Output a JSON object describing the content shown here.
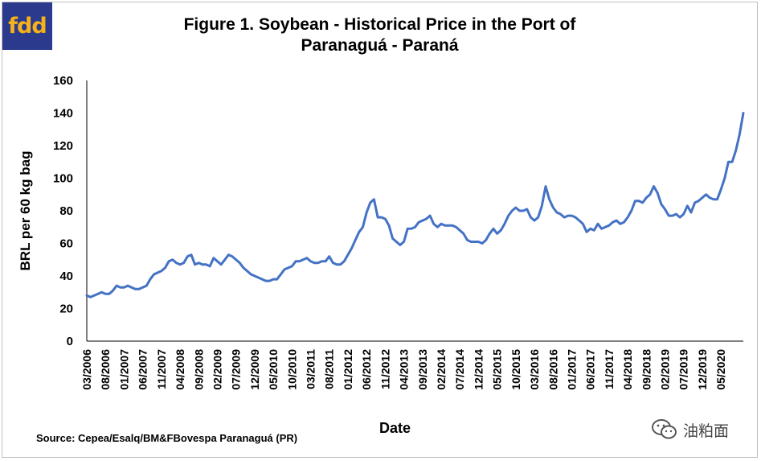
{
  "logo": {
    "text": "fdd",
    "bg_color": "#2b3a8c",
    "text_color": "#f5b21a"
  },
  "watermark": {
    "icon": "wechat-icon",
    "text": "油粕面"
  },
  "chart_data": {
    "type": "line",
    "title_line1": "Figure 1. Soybean - Historical Price in the Port of",
    "title_line2": "Paranaguá - Paraná",
    "xlabel": "Date",
    "ylabel": "BRL per 60 kg bag",
    "source": "Source: Cepea/Esalq/BM&FBovespa  Paranaguá (PR)",
    "ylim": [
      0,
      160
    ],
    "yticks": [
      0,
      20,
      40,
      60,
      80,
      100,
      120,
      140,
      160
    ],
    "xlim": [
      0,
      176
    ],
    "xtick_labels": [
      "03/2006",
      "08/2006",
      "01/2007",
      "06/2007",
      "11/2007",
      "04/2008",
      "09/2008",
      "02/2009",
      "07/2009",
      "12/2009",
      "05/2010",
      "10/2010",
      "03/2011",
      "08/2011",
      "01/2012",
      "06/2012",
      "11/2012",
      "04/2013",
      "09/2013",
      "02/2014",
      "07/2014",
      "12/2014",
      "05/2015",
      "10/2015",
      "03/2016",
      "08/2016",
      "01/2017",
      "06/2017",
      "11/2017",
      "04/2018",
      "09/2018",
      "02/2019",
      "07/2019",
      "12/2019",
      "05/2020"
    ],
    "xtick_months": [
      0,
      5,
      10,
      15,
      20,
      25,
      30,
      35,
      40,
      45,
      50,
      55,
      60,
      65,
      70,
      75,
      80,
      85,
      90,
      95,
      100,
      105,
      110,
      115,
      120,
      125,
      130,
      135,
      140,
      145,
      150,
      155,
      160,
      165,
      170
    ],
    "line_color": "#4472c4",
    "series": [
      {
        "name": "Soybean price",
        "x": [
          0,
          1,
          2,
          3,
          4,
          5,
          6,
          7,
          8,
          9,
          10,
          11,
          12,
          13,
          14,
          15,
          16,
          17,
          18,
          19,
          20,
          21,
          22,
          23,
          24,
          25,
          26,
          27,
          28,
          29,
          30,
          31,
          32,
          33,
          34,
          35,
          36,
          37,
          38,
          39,
          40,
          41,
          42,
          43,
          44,
          45,
          46,
          47,
          48,
          49,
          50,
          51,
          52,
          53,
          54,
          55,
          56,
          57,
          58,
          59,
          60,
          61,
          62,
          63,
          64,
          65,
          66,
          67,
          68,
          69,
          70,
          71,
          72,
          73,
          74,
          75,
          76,
          77,
          78,
          79,
          80,
          81,
          82,
          83,
          84,
          85,
          86,
          87,
          88,
          89,
          90,
          91,
          92,
          93,
          94,
          95,
          96,
          97,
          98,
          99,
          100,
          101,
          102,
          103,
          104,
          105,
          106,
          107,
          108,
          109,
          110,
          111,
          112,
          113,
          114,
          115,
          116,
          117,
          118,
          119,
          120,
          121,
          122,
          123,
          124,
          125,
          126,
          127,
          128,
          129,
          130,
          131,
          132,
          133,
          134,
          135,
          136,
          137,
          138,
          139,
          140,
          141,
          142,
          143,
          144,
          145,
          146,
          147,
          148,
          149,
          150,
          151,
          152,
          153,
          154,
          155,
          156,
          157,
          158,
          159,
          160,
          161,
          162,
          163,
          164,
          165,
          166,
          167,
          168,
          169,
          170,
          171,
          172,
          173,
          174,
          175,
          176
        ],
        "values": [
          28,
          27,
          28,
          29,
          30,
          29,
          29,
          31,
          34,
          33,
          33,
          34,
          33,
          32,
          32,
          33,
          34,
          38,
          41,
          42,
          43,
          45,
          49,
          50,
          48,
          47,
          48,
          52,
          53,
          47,
          48,
          47,
          47,
          46,
          51,
          49,
          47,
          50,
          53,
          52,
          50,
          48,
          45,
          43,
          41,
          40,
          39,
          38,
          37,
          37,
          38,
          38,
          41,
          44,
          45,
          46,
          49,
          49,
          50,
          51,
          49,
          48,
          48,
          49,
          49,
          52,
          48,
          47,
          47,
          49,
          53,
          57,
          62,
          67,
          70,
          79,
          85,
          87,
          76,
          76,
          75,
          71,
          63,
          61,
          59,
          61,
          69,
          69,
          70,
          73,
          74,
          75,
          77,
          72,
          70,
          72,
          71,
          71,
          71,
          70,
          68,
          66,
          62,
          61,
          61,
          61,
          60,
          62,
          66,
          69,
          66,
          68,
          72,
          77,
          80,
          82,
          80,
          80,
          81,
          76,
          74,
          76,
          83,
          95,
          87,
          82,
          79,
          78,
          76,
          77,
          77,
          76,
          74,
          72,
          67,
          69,
          68,
          72,
          69,
          70,
          71,
          73,
          74,
          72,
          73,
          76,
          80,
          86,
          86,
          85,
          88,
          90,
          95,
          91,
          84,
          81,
          77,
          77,
          78,
          76,
          78,
          83,
          79,
          85,
          86,
          88,
          90,
          88,
          87,
          87,
          93,
          100,
          110,
          110,
          117,
          127,
          140
        ]
      }
    ]
  }
}
